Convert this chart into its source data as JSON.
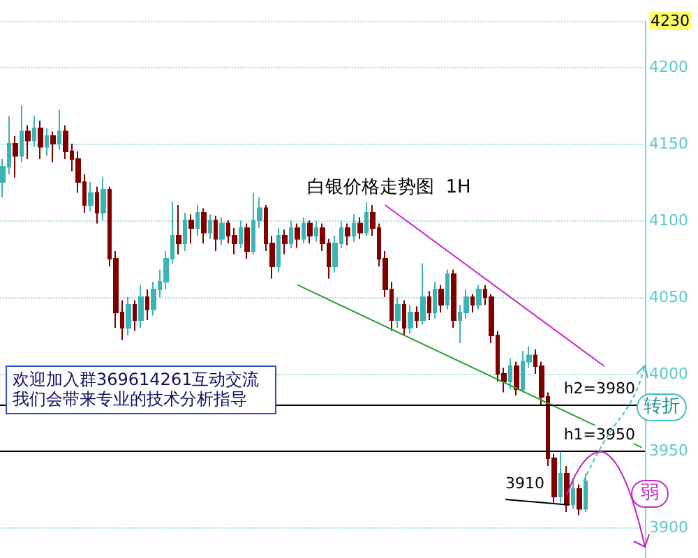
{
  "chart_data": {
    "type": "candlestick",
    "title": "白银价格走势图  1H",
    "categories": [
      null,
      null,
      null,
      null,
      null,
      null,
      null,
      null,
      null,
      null,
      null,
      null,
      null,
      null,
      null,
      null,
      null,
      null,
      null,
      null,
      null,
      null,
      null,
      null,
      null,
      null,
      null,
      null,
      null,
      null,
      null,
      null,
      null,
      null,
      null,
      null,
      null,
      null,
      null,
      null,
      null,
      null,
      null,
      null,
      null,
      null,
      null,
      null,
      null,
      null,
      null,
      null,
      null,
      null,
      null,
      null,
      null,
      null,
      null,
      null,
      null,
      null,
      null,
      null,
      null,
      null,
      null,
      null,
      null,
      null,
      null,
      null,
      null,
      null,
      null,
      null,
      null,
      null,
      null,
      null,
      null,
      null,
      null,
      null,
      null,
      null,
      null,
      null,
      null,
      null,
      null,
      null,
      null,
      null,
      null,
      null,
      null,
      null,
      null,
      null,
      null,
      null,
      null
    ],
    "ohlc": [
      [
        4125,
        4140,
        4115,
        4135
      ],
      [
        4135,
        4168,
        4130,
        4150
      ],
      [
        4150,
        4155,
        4128,
        4142
      ],
      [
        4142,
        4175,
        4138,
        4158
      ],
      [
        4158,
        4162,
        4140,
        4152
      ],
      [
        4152,
        4168,
        4148,
        4160
      ],
      [
        4160,
        4165,
        4140,
        4148
      ],
      [
        4148,
        4160,
        4142,
        4155
      ],
      [
        4155,
        4158,
        4138,
        4150
      ],
      [
        4150,
        4172,
        4146,
        4158
      ],
      [
        4158,
        4162,
        4140,
        4145
      ],
      [
        4145,
        4150,
        4132,
        4140
      ],
      [
        4140,
        4145,
        4118,
        4125
      ],
      [
        4125,
        4130,
        4105,
        4110
      ],
      [
        4110,
        4125,
        4106,
        4118
      ],
      [
        4118,
        4122,
        4098,
        4105
      ],
      [
        4105,
        4128,
        4100,
        4120
      ],
      [
        4120,
        4122,
        4070,
        4075
      ],
      [
        4075,
        4080,
        4030,
        4040
      ],
      [
        4040,
        4048,
        4022,
        4030
      ],
      [
        4030,
        4050,
        4025,
        4045
      ],
      [
        4045,
        4048,
        4028,
        4035
      ],
      [
        4035,
        4058,
        4030,
        4050
      ],
      [
        4050,
        4055,
        4035,
        4042
      ],
      [
        4042,
        4060,
        4038,
        4055
      ],
      [
        4055,
        4068,
        4050,
        4060
      ],
      [
        4060,
        4080,
        4055,
        4075
      ],
      [
        4075,
        4112,
        4072,
        4090
      ],
      [
        4090,
        4110,
        4078,
        4085
      ],
      [
        4085,
        4105,
        4080,
        4100
      ],
      [
        4100,
        4104,
        4085,
        4095
      ],
      [
        4095,
        4110,
        4090,
        4105
      ],
      [
        4105,
        4108,
        4085,
        4092
      ],
      [
        4092,
        4104,
        4088,
        4100
      ],
      [
        4100,
        4103,
        4080,
        4088
      ],
      [
        4088,
        4102,
        4084,
        4098
      ],
      [
        4098,
        4100,
        4085,
        4090
      ],
      [
        4090,
        4095,
        4078,
        4085
      ],
      [
        4085,
        4100,
        4082,
        4095
      ],
      [
        4095,
        4098,
        4075,
        4080
      ],
      [
        4080,
        4118,
        4078,
        4100
      ],
      [
        4100,
        4115,
        4095,
        4108
      ],
      [
        4108,
        4110,
        4080,
        4085
      ],
      [
        4085,
        4090,
        4062,
        4070
      ],
      [
        4070,
        4095,
        4066,
        4090
      ],
      [
        4090,
        4094,
        4078,
        4085
      ],
      [
        4085,
        4100,
        4082,
        4095
      ],
      [
        4095,
        4098,
        4082,
        4088
      ],
      [
        4088,
        4102,
        4085,
        4098
      ],
      [
        4098,
        4100,
        4085,
        4090
      ],
      [
        4090,
        4100,
        4086,
        4095
      ],
      [
        4095,
        4098,
        4080,
        4085
      ],
      [
        4085,
        4088,
        4062,
        4070
      ],
      [
        4070,
        4090,
        4066,
        4085
      ],
      [
        4085,
        4100,
        4082,
        4095
      ],
      [
        4095,
        4098,
        4084,
        4090
      ],
      [
        4090,
        4104,
        4086,
        4098
      ],
      [
        4098,
        4102,
        4088,
        4092
      ],
      [
        4092,
        4112,
        4090,
        4105
      ],
      [
        4105,
        4110,
        4090,
        4095
      ],
      [
        4095,
        4098,
        4070,
        4075
      ],
      [
        4075,
        4080,
        4050,
        4055
      ],
      [
        4055,
        4060,
        4028,
        4035
      ],
      [
        4035,
        4050,
        4030,
        4045
      ],
      [
        4045,
        4048,
        4025,
        4030
      ],
      [
        4030,
        4045,
        4026,
        4040
      ],
      [
        4040,
        4044,
        4030,
        4035
      ],
      [
        4035,
        4072,
        4032,
        4050
      ],
      [
        4050,
        4054,
        4035,
        4040
      ],
      [
        4040,
        4060,
        4036,
        4055
      ],
      [
        4055,
        4058,
        4040,
        4045
      ],
      [
        4045,
        4068,
        4042,
        4065
      ],
      [
        4065,
        4068,
        4030,
        4035
      ],
      [
        4035,
        4045,
        4020,
        4040
      ],
      [
        4040,
        4055,
        4036,
        4050
      ],
      [
        4050,
        4052,
        4040,
        4045
      ],
      [
        4045,
        4058,
        4042,
        4055
      ],
      [
        4055,
        4058,
        4045,
        4050
      ],
      [
        4050,
        4052,
        4020,
        4025
      ],
      [
        4025,
        4028,
        3995,
        4000
      ],
      [
        4000,
        4004,
        3988,
        3995
      ],
      [
        3995,
        4010,
        3990,
        4005
      ],
      [
        4005,
        4008,
        3986,
        3990
      ],
      [
        3990,
        4015,
        3988,
        4008
      ],
      [
        4008,
        4018,
        4004,
        4012
      ],
      [
        4012,
        4016,
        4000,
        4005
      ],
      [
        4005,
        4008,
        3980,
        3985
      ],
      [
        3985,
        3988,
        3940,
        3945
      ],
      [
        3945,
        3948,
        3915,
        3920
      ],
      [
        3920,
        3950,
        3916,
        3935
      ],
      [
        3935,
        3940,
        3910,
        3915
      ],
      [
        3915,
        3932,
        3912,
        3925
      ],
      [
        3925,
        3928,
        3908,
        3912
      ],
      [
        3912,
        3935,
        3910,
        3930
      ],
      null,
      null,
      null,
      null,
      null,
      null,
      null,
      null,
      null
    ],
    "colors": [
      "#3cb4b4",
      "#3cb4b4",
      "#800000",
      "#3cb4b4",
      "#800000",
      "#3cb4b4",
      "#800000",
      "#3cb4b4",
      "#800000",
      "#3cb4b4",
      "#800000",
      "#800000",
      "#800000",
      "#800000",
      "#3cb4b4",
      "#800000",
      "#3cb4b4",
      "#800000",
      "#800000",
      "#800000",
      "#3cb4b4",
      "#800000",
      "#3cb4b4",
      "#800000",
      "#3cb4b4",
      "#3cb4b4",
      "#3cb4b4",
      "#3cb4b4",
      "#800000",
      "#3cb4b4",
      "#800000",
      "#3cb4b4",
      "#800000",
      "#3cb4b4",
      "#800000",
      "#3cb4b4",
      "#800000",
      "#800000",
      "#3cb4b4",
      "#800000",
      "#3cb4b4",
      "#3cb4b4",
      "#800000",
      "#800000",
      "#3cb4b4",
      "#800000",
      "#3cb4b4",
      "#800000",
      "#3cb4b4",
      "#800000",
      "#3cb4b4",
      "#800000",
      "#800000",
      "#3cb4b4",
      "#3cb4b4",
      "#800000",
      "#3cb4b4",
      "#800000",
      "#3cb4b4",
      "#800000",
      "#800000",
      "#800000",
      "#800000",
      "#3cb4b4",
      "#800000",
      "#3cb4b4",
      "#800000",
      "#3cb4b4",
      "#800000",
      "#3cb4b4",
      "#800000",
      "#3cb4b4",
      "#800000",
      "#3cb4b4",
      "#3cb4b4",
      "#800000",
      "#3cb4b4",
      "#800000",
      "#800000",
      "#800000",
      "#800000",
      "#3cb4b4",
      "#800000",
      "#3cb4b4",
      "#3cb4b4",
      "#800000",
      "#800000",
      "#800000",
      "#800000",
      "#3cb4b4",
      "#800000",
      "#3cb4b4",
      "#800000",
      "#3cb4b4",
      null,
      null,
      null,
      null,
      null,
      null,
      null,
      null,
      null
    ],
    "series": [
      {
        "type": "line",
        "color": "#2e9e2e",
        "values": [
          null,
          null,
          null,
          null,
          null,
          null,
          null,
          null,
          null,
          null,
          null,
          null,
          null,
          null,
          null,
          null,
          null,
          null,
          null,
          null,
          null,
          null,
          null,
          null,
          null,
          null,
          null,
          null,
          null,
          null,
          null,
          null,
          null,
          null,
          null,
          null,
          null,
          null,
          null,
          null,
          null,
          null,
          null,
          null,
          null,
          null,
          null,
          4058,
          null,
          null,
          null,
          null,
          null,
          null,
          null,
          null,
          null,
          null,
          null,
          null,
          null,
          null,
          null,
          null,
          null,
          null,
          null,
          null,
          null,
          null,
          null,
          null,
          null,
          null,
          null,
          null,
          null,
          null,
          null,
          null,
          null,
          null,
          null,
          null,
          null,
          null,
          null,
          null,
          null,
          null,
          null,
          null,
          null,
          null,
          null,
          null,
          null,
          null,
          null,
          null,
          null,
          null,
          3952
        ]
      },
      {
        "type": "line",
        "color": "#d020d0",
        "values": [
          null,
          null,
          null,
          null,
          null,
          null,
          null,
          null,
          null,
          null,
          null,
          null,
          null,
          null,
          null,
          null,
          null,
          null,
          null,
          null,
          null,
          null,
          null,
          null,
          null,
          null,
          null,
          null,
          null,
          null,
          null,
          null,
          null,
          null,
          null,
          null,
          null,
          null,
          null,
          null,
          null,
          null,
          null,
          null,
          null,
          null,
          null,
          null,
          null,
          null,
          null,
          null,
          null,
          null,
          null,
          null,
          null,
          null,
          null,
          null,
          null,
          4110,
          null,
          null,
          null,
          null,
          null,
          null,
          null,
          null,
          null,
          null,
          null,
          null,
          null,
          null,
          null,
          null,
          null,
          null,
          null,
          null,
          null,
          null,
          null,
          null,
          null,
          null,
          null,
          null,
          null,
          null,
          null,
          null,
          null,
          null,
          4005,
          null,
          null,
          null,
          null,
          null,
          null
        ]
      }
    ],
    "ylim": [
      3880,
      4230
    ],
    "yticks": [
      3900,
      3950,
      4000,
      4050,
      4100,
      4150,
      4200,
      4230
    ],
    "grid": "y",
    "ref_lines": [
      {
        "axis": "y",
        "value": 3980,
        "label": "h2=3980",
        "color": "#000000"
      },
      {
        "axis": "y",
        "value": 3950,
        "label": "h1=3950",
        "color": "#000000"
      }
    ],
    "annotations": [
      "欢迎加入群369614261互动交流我们会带来专业的技术分析指导",
      "转折",
      "弱",
      "3910"
    ]
  }
}
